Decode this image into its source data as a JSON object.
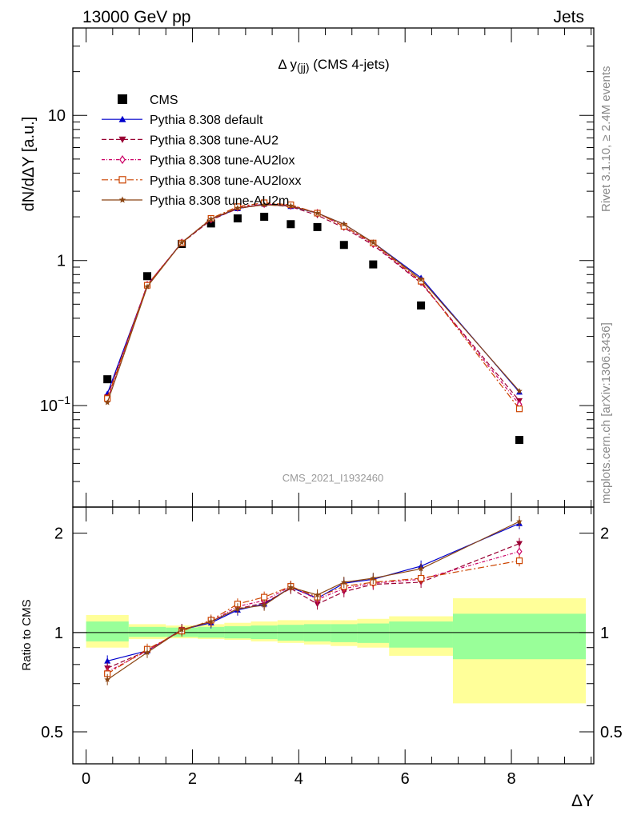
{
  "header": {
    "left": "13000 GeV pp",
    "right": "Jets"
  },
  "side": {
    "rivet": "Rivet 3.1.10, ≥ 2.4M events",
    "mcplots": "mcplots.cern.ch [arXiv:1306.3436]"
  },
  "chart_data": [
    {
      "type": "line",
      "title": "Δ y(jj) (CMS 4-jets)",
      "title_main": "Δ y",
      "title_sub": "(jj)",
      "title_tail": " (CMS 4-jets)",
      "watermark": "CMS_2021_I1932460",
      "ylabel": "dN/dΔY [a.u.]",
      "yscale": "log",
      "ylim": [
        0.02,
        40
      ],
      "yticks": [
        {
          "value": 0.1,
          "base": "10",
          "exp": "−1"
        },
        {
          "value": 1,
          "label": "1"
        },
        {
          "value": 10,
          "label": "10"
        }
      ],
      "xlim": [
        -0.25,
        9.55
      ],
      "legend_position": "top-left",
      "x": [
        0.4,
        1.15,
        1.8,
        2.35,
        2.85,
        3.35,
        3.85,
        4.35,
        4.85,
        5.4,
        6.3,
        8.15
      ],
      "x_bins": [
        0,
        0.8,
        1.5,
        2.1,
        2.6,
        3.1,
        3.6,
        4.1,
        4.6,
        5.1,
        5.7,
        6.9,
        9.4
      ],
      "series": [
        {
          "name": "CMS",
          "color": "#000000",
          "marker": "square-filled",
          "line": "none",
          "values": [
            0.152,
            0.78,
            1.3,
            1.8,
            1.95,
            2.0,
            1.78,
            1.7,
            1.28,
            0.94,
            0.49,
            0.058
          ]
        },
        {
          "name": "Pythia 8.308 default",
          "color": "#0000cc",
          "marker": "triangle-up",
          "line": "solid",
          "values": [
            0.121,
            0.67,
            1.33,
            1.92,
            2.28,
            2.45,
            2.36,
            2.12,
            1.78,
            1.33,
            0.76,
            0.124
          ]
        },
        {
          "name": "Pythia 8.308 tune-AU2",
          "color": "#990033",
          "marker": "triangle-down",
          "line": "dashed",
          "values": [
            0.115,
            0.68,
            1.32,
            1.9,
            2.28,
            2.43,
            2.35,
            2.05,
            1.68,
            1.28,
            0.7,
            0.108
          ]
        },
        {
          "name": "Pythia 8.308 tune-AU2lox",
          "color": "#cc0066",
          "marker": "diamond-open",
          "line": "dashdot",
          "values": [
            0.11,
            0.68,
            1.33,
            1.92,
            2.32,
            2.45,
            2.4,
            2.13,
            1.72,
            1.3,
            0.71,
            0.102
          ]
        },
        {
          "name": "Pythia 8.308 tune-AU2loxx",
          "color": "#cc4400",
          "marker": "square-open",
          "line": "dashdotted",
          "values": [
            0.112,
            0.675,
            1.32,
            1.95,
            2.35,
            2.5,
            2.42,
            2.12,
            1.72,
            1.32,
            0.72,
            0.095
          ]
        },
        {
          "name": "Pythia 8.308 tune-AU2m",
          "color": "#8b4513",
          "marker": "star",
          "line": "solid",
          "values": [
            0.105,
            0.66,
            1.33,
            1.93,
            2.3,
            2.42,
            2.38,
            2.12,
            1.78,
            1.33,
            0.74,
            0.126
          ]
        }
      ]
    },
    {
      "type": "line",
      "ylabel": "Ratio to CMS",
      "xlabel": "ΔY",
      "yscale": "log",
      "ylim": [
        0.4,
        2.4
      ],
      "yticks": [
        0.5,
        1,
        2
      ],
      "xticks": [
        0,
        2,
        4,
        6,
        8
      ],
      "xlim": [
        -0.25,
        9.55
      ],
      "reference_line": 1,
      "uncertainty_bands": {
        "bins": [
          0,
          0.8,
          1.5,
          2.1,
          2.6,
          3.1,
          3.6,
          4.1,
          4.6,
          5.1,
          5.7,
          6.9,
          9.4
        ],
        "yellow_low": [
          0.9,
          0.955,
          0.96,
          0.955,
          0.95,
          0.94,
          0.93,
          0.92,
          0.91,
          0.9,
          0.85,
          0.61
        ],
        "yellow_high": [
          1.13,
          1.06,
          1.05,
          1.06,
          1.07,
          1.08,
          1.09,
          1.09,
          1.09,
          1.1,
          1.12,
          1.27
        ],
        "green_low": [
          0.94,
          0.97,
          0.97,
          0.965,
          0.96,
          0.955,
          0.945,
          0.94,
          0.935,
          0.93,
          0.9,
          0.83
        ],
        "green_high": [
          1.08,
          1.04,
          1.035,
          1.04,
          1.045,
          1.05,
          1.055,
          1.06,
          1.06,
          1.065,
          1.08,
          1.14
        ],
        "yellow_color": "#ffff99",
        "green_color": "#99ff99"
      },
      "series": [
        {
          "name": "Pythia 8.308 default",
          "color": "#0000cc",
          "values": [
            0.82,
            0.88,
            1.02,
            1.07,
            1.17,
            1.22,
            1.37,
            1.27,
            1.41,
            1.45,
            1.59,
            2.14
          ]
        },
        {
          "name": "Pythia 8.308 tune-AU2",
          "color": "#990033",
          "values": [
            0.78,
            0.88,
            1.02,
            1.08,
            1.18,
            1.23,
            1.36,
            1.22,
            1.33,
            1.4,
            1.42,
            1.86
          ]
        },
        {
          "name": "Pythia 8.308 tune-AU2lox",
          "color": "#cc0066",
          "values": [
            0.76,
            0.88,
            1.02,
            1.08,
            1.2,
            1.25,
            1.38,
            1.26,
            1.36,
            1.41,
            1.45,
            1.76
          ]
        },
        {
          "name": "Pythia 8.308 tune-AU2loxx",
          "color": "#cc4400",
          "values": [
            0.75,
            0.89,
            1.01,
            1.09,
            1.22,
            1.28,
            1.38,
            1.28,
            1.38,
            1.42,
            1.46,
            1.65
          ]
        },
        {
          "name": "Pythia 8.308 tune-AU2m",
          "color": "#8b4513",
          "values": [
            0.72,
            0.87,
            1.02,
            1.08,
            1.18,
            1.21,
            1.37,
            1.3,
            1.42,
            1.46,
            1.56,
            2.17
          ]
        }
      ]
    }
  ]
}
